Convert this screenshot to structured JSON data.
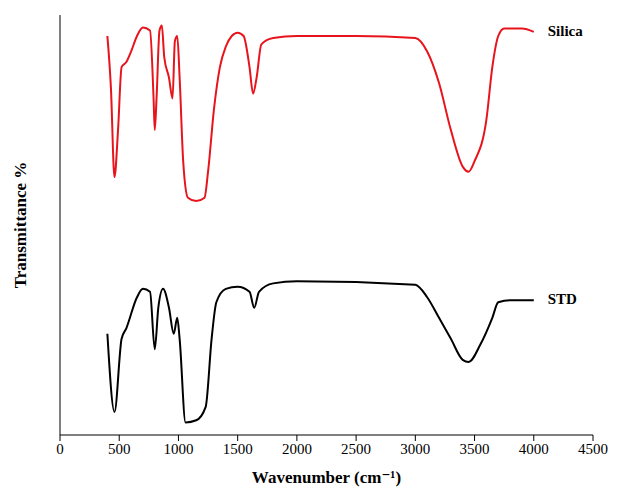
{
  "chart_data": {
    "type": "line",
    "x_label": "Wavenumber (cm⁻¹)",
    "y_label": "Transmittance %",
    "xlim": [
      0,
      4500
    ],
    "xticks": [
      0,
      500,
      1000,
      1500,
      2000,
      2500,
      3000,
      3500,
      4000,
      4500
    ],
    "ylim": [
      0,
      100
    ],
    "tick_labels": "x",
    "grid": false,
    "series": [
      {
        "name": "Silica",
        "color": "#e8141c",
        "x": [
          400,
          430,
          460,
          490,
          520,
          560,
          600,
          650,
          700,
          760,
          790,
          800,
          815,
          840,
          860,
          880,
          920,
          950,
          970,
          990,
          1010,
          1040,
          1080,
          1150,
          1220,
          1250,
          1300,
          1350,
          1400,
          1450,
          1500,
          1550,
          1600,
          1630,
          1660,
          1700,
          1800,
          2000,
          2500,
          3000,
          3100,
          3200,
          3300,
          3400,
          3450,
          3500,
          3600,
          3650,
          3700,
          3750,
          3900,
          4000
        ],
        "values": [
          95.0,
          82.6,
          61.4,
          72.6,
          87.6,
          88.8,
          91.3,
          95.0,
          97.0,
          96.3,
          80.1,
          72.6,
          80.1,
          96.3,
          97.5,
          90.0,
          85.1,
          80.1,
          93.8,
          95.0,
          85.1,
          65.2,
          56.5,
          55.7,
          56.5,
          62.7,
          77.6,
          87.6,
          92.5,
          95.0,
          95.8,
          95.0,
          87.6,
          81.3,
          85.1,
          93.0,
          94.5,
          95.0,
          95.0,
          94.5,
          91.3,
          83.8,
          72.6,
          63.9,
          62.7,
          65.2,
          75.1,
          87.6,
          95.0,
          96.8,
          96.8,
          96.0
        ]
      },
      {
        "name": "STD",
        "color": "#000000",
        "x": [
          400,
          460,
          520,
          560,
          650,
          700,
          760,
          800,
          830,
          870,
          920,
          960,
          990,
          1010,
          1060,
          1150,
          1230,
          1280,
          1320,
          1400,
          1500,
          1600,
          1640,
          1680,
          1800,
          2000,
          3000,
          3100,
          3200,
          3300,
          3400,
          3450,
          3550,
          3650,
          3700,
          3800,
          4000
        ],
        "values": [
          24.1,
          5.5,
          22.9,
          25.4,
          32.8,
          34.8,
          34.1,
          20.4,
          30.3,
          34.8,
          30.3,
          24.1,
          27.9,
          22.9,
          3.0,
          3.5,
          6.7,
          22.9,
          31.6,
          34.8,
          35.3,
          34.1,
          30.3,
          34.1,
          36.1,
          36.6,
          35.8,
          32.8,
          27.9,
          22.9,
          17.9,
          17.4,
          21.6,
          27.9,
          31.6,
          32.1,
          32.1
        ]
      }
    ]
  }
}
